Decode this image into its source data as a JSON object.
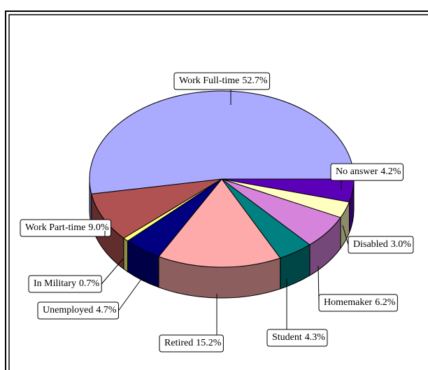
{
  "chart_data": {
    "type": "pie",
    "categories": [
      "No answer",
      "Disabled",
      "Homemaker",
      "Student",
      "Retired",
      "Unemployed",
      "In Military",
      "Work Part-time",
      "Work Full-time"
    ],
    "values": [
      4.2,
      3.0,
      6.2,
      4.3,
      15.2,
      4.7,
      0.7,
      9.0,
      52.7
    ],
    "value_labels": [
      "4.2%",
      "3.0%",
      "6.2%",
      "4.3%",
      "15.2%",
      "4.7%",
      "0.7%",
      "9.0%",
      "52.7%"
    ],
    "colors": [
      "#5c00b8",
      "#ffffc0",
      "#d683dc",
      "#008080",
      "#ffaaaa",
      "#000080",
      "#ffff80",
      "#b05252",
      "#aaaaff"
    ]
  }
}
